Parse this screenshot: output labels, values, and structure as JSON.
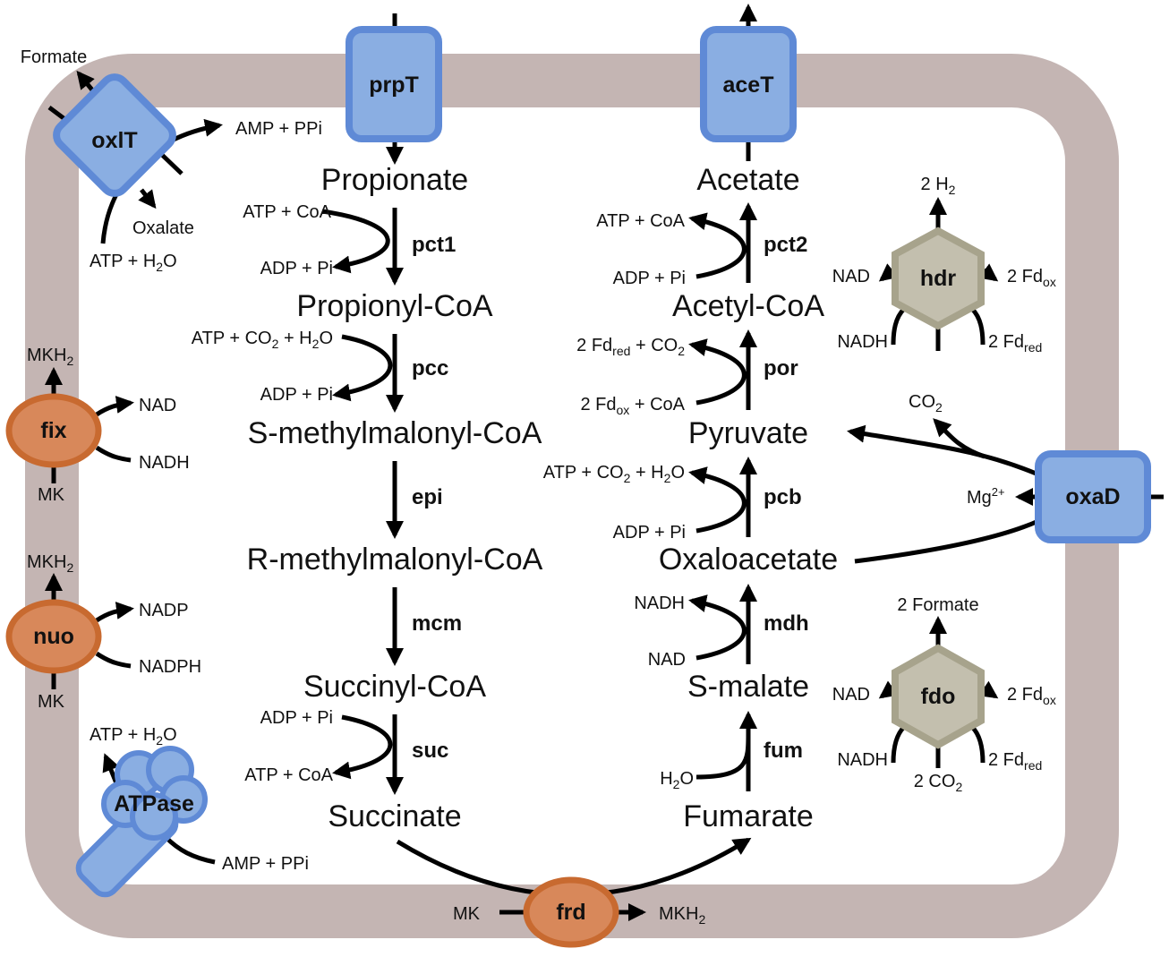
{
  "colors": {
    "membrane": "#c4b5b3",
    "transporter_fill": "#8aaee2",
    "transporter_stroke": "#5f8ad6",
    "oval_fill": "#d8885a",
    "oval_stroke": "#c86a30",
    "hex_fill": "#c3bfae",
    "hex_stroke": "#a7a38c"
  },
  "transporters": {
    "prpT": "prpT",
    "aceT": "aceT",
    "oxlT": "oxlT",
    "oxaD": "oxaD",
    "atpase": "ATPase"
  },
  "membrane_complexes": {
    "fix": "fix",
    "nuo": "nuo",
    "frd": "frd",
    "hdr": "hdr",
    "fdo": "fdo"
  },
  "left_pathway": {
    "metabolites": [
      "Propionate",
      "Propionyl-CoA",
      "S-methylmalonyl-CoA",
      "R-methylmalonyl-CoA",
      "Succinyl-CoA",
      "Succinate"
    ],
    "enzymes": [
      "pct1",
      "pcc",
      "epi",
      "mcm",
      "suc"
    ],
    "pct1_in": "ATP + CoA",
    "pct1_out": "ADP + Pi",
    "pcc_in": "ATP + CO2 + H2O",
    "pcc_out": "ADP + Pi",
    "suc_in": "ADP + Pi",
    "suc_out": "ATP + CoA"
  },
  "right_pathway": {
    "metabolites": [
      "Acetate",
      "Acetyl-CoA",
      "Pyruvate",
      "Oxaloacetate",
      "S-malate",
      "Fumarate"
    ],
    "enzymes": [
      "pct2",
      "por",
      "pcb",
      "mdh",
      "fum"
    ],
    "pct2_in": "ADP + Pi",
    "pct2_out": "ATP + CoA",
    "por_in": "2 Fdox + CoA",
    "por_out": "2 Fdred + CO2",
    "pcb_in": "ADP + Pi",
    "pcb_out": "ATP + CO2 + H2O",
    "mdh_in": "NAD",
    "mdh_out": "NADH",
    "fum_in": "H2O"
  },
  "oxlt": {
    "formate": "Formate",
    "oxalate": "Oxalate",
    "atp_h2o": "ATP + H2O",
    "amp_ppi": "AMP + PPi"
  },
  "fix_labels": {
    "top": "MKH2",
    "bottom": "MK",
    "in": "NADH",
    "out": "NAD"
  },
  "nuo_labels": {
    "top": "MKH2",
    "bottom": "MK",
    "in": "NADPH",
    "out": "NADP"
  },
  "atpase_labels": {
    "in": "ATP + H2O",
    "out": "AMP + PPi"
  },
  "frd_labels": {
    "in": "MK",
    "out": "MKH2"
  },
  "hdr_labels": {
    "top": "2 H2",
    "left_out": "NAD",
    "left_in": "NADH",
    "right_out": "2 Fdox",
    "right_in": "2 Fdred"
  },
  "fdo_labels": {
    "top": "2 Formate",
    "left_out": "NAD",
    "left_in": "NADH",
    "right_out": "2 Fdox",
    "right_in": "2 Fdred",
    "bottom": "2 CO2"
  },
  "oxad_labels": {
    "co2": "CO2",
    "mg": "Mg2+"
  }
}
